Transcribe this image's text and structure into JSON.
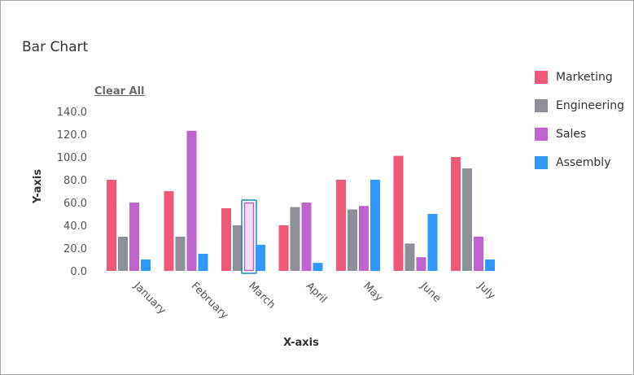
{
  "chart_data": {
    "type": "bar",
    "title": "Bar Chart",
    "xlabel": "X-axis",
    "ylabel": "Y-axis",
    "ylim": [
      0,
      140
    ],
    "yticks": [
      "0.0",
      "20.0",
      "40.0",
      "60.0",
      "80.0",
      "100.0",
      "120.0",
      "140.0"
    ],
    "categories": [
      "January",
      "February",
      "March",
      "April",
      "May",
      "June",
      "July"
    ],
    "series": [
      {
        "name": "Marketing",
        "color": "#f0587a",
        "values": [
          80,
          70,
          55,
          40,
          80,
          101,
          100
        ]
      },
      {
        "name": "Engineering",
        "color": "#8e9099",
        "values": [
          30,
          30,
          40,
          56,
          54,
          24,
          90
        ]
      },
      {
        "name": "Sales",
        "color": "#bf63cf",
        "values": [
          60,
          123,
          60,
          60,
          57,
          12,
          30
        ]
      },
      {
        "name": "Assembly",
        "color": "#2e98ff",
        "values": [
          10,
          15,
          23,
          7,
          80,
          50,
          10
        ]
      }
    ],
    "legend_position": "right",
    "grid": false,
    "selected": {
      "series": "Sales",
      "category": "March"
    }
  },
  "controls": {
    "clear_all": "Clear All"
  },
  "colors": {
    "selection_outline": "#1e88b8",
    "selected_fill": "#f1dff4"
  }
}
